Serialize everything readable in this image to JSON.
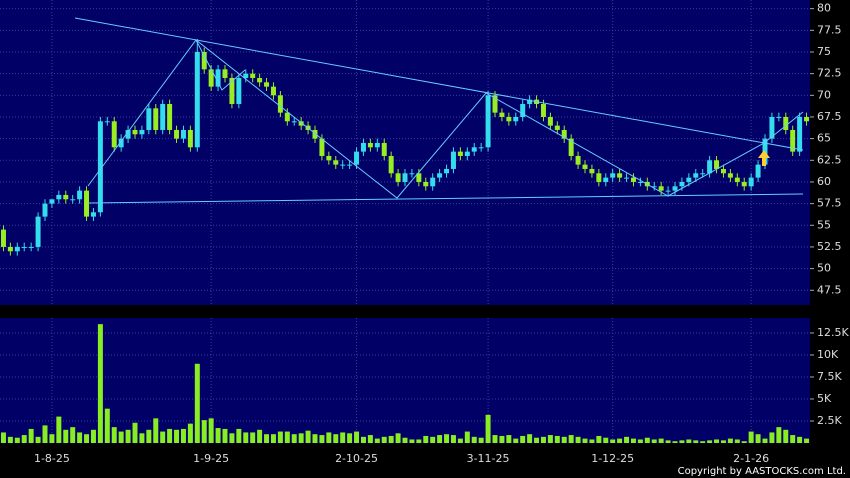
{
  "chart_data": {
    "type": "candlestick",
    "categories": [
      null,
      null,
      null,
      null,
      null,
      null,
      null,
      "1-8-25",
      null,
      null,
      null,
      null,
      null,
      null,
      null,
      null,
      null,
      null,
      null,
      null,
      null,
      null,
      null,
      null,
      null,
      null,
      null,
      null,
      null,
      null,
      "1-9-25",
      null,
      null,
      null,
      null,
      null,
      null,
      null,
      null,
      null,
      null,
      null,
      null,
      null,
      null,
      null,
      null,
      null,
      null,
      null,
      null,
      "2-10-25",
      null,
      null,
      null,
      null,
      null,
      null,
      null,
      null,
      null,
      null,
      null,
      null,
      null,
      null,
      null,
      null,
      null,
      null,
      "3-11-25",
      null,
      null,
      null,
      null,
      null,
      null,
      null,
      null,
      null,
      null,
      null,
      null,
      null,
      null,
      null,
      null,
      null,
      "1-12-25",
      null,
      null,
      null,
      null,
      null,
      null,
      null,
      null,
      null,
      null,
      null,
      null,
      null,
      null,
      null,
      null,
      null,
      null,
      null,
      "2-1-26",
      null,
      null,
      null,
      null,
      null,
      null,
      null,
      null
    ],
    "open": [
      54.5,
      52.5,
      52,
      52.5,
      52.5,
      52.5,
      56,
      57.5,
      58,
      58.5,
      58,
      58,
      59,
      56,
      56.5,
      67,
      67,
      64,
      65,
      66,
      65.5,
      66,
      68.5,
      66,
      69,
      66,
      65,
      66,
      64,
      75,
      73,
      71,
      73,
      72,
      69,
      72,
      72.5,
      72,
      71.5,
      71,
      70,
      68,
      67,
      67,
      66.5,
      66,
      65,
      63,
      62.5,
      62,
      62,
      62,
      63.5,
      64.5,
      64,
      64.5,
      63,
      61,
      60,
      61,
      61,
      60,
      59.5,
      60.5,
      61,
      61.5,
      63.5,
      63,
      63.5,
      64,
      64,
      70,
      68,
      67.5,
      67,
      67.5,
      69,
      69.5,
      69,
      67.5,
      66.5,
      66,
      65,
      63,
      62,
      61.5,
      61,
      60,
      60.5,
      61,
      60.5,
      60.5,
      60,
      60,
      59.5,
      59.5,
      59,
      59,
      59.5,
      60,
      60.5,
      61,
      61,
      62.5,
      61.5,
      61,
      60.5,
      60,
      59.5,
      60.5,
      62,
      65,
      67.5,
      67.5,
      66,
      63.5,
      67.5
    ],
    "high": [
      55,
      53,
      53,
      53,
      53,
      56.5,
      58,
      58,
      59,
      59,
      58.5,
      59.5,
      59.5,
      57,
      67.5,
      67.5,
      67.5,
      65.5,
      66.5,
      66.5,
      66.5,
      69,
      69,
      69.5,
      69.5,
      66.5,
      66.5,
      66.5,
      76.5,
      75.5,
      73.5,
      73.5,
      73.5,
      72.5,
      72.5,
      73,
      73,
      72.5,
      72,
      71.5,
      70.5,
      68.5,
      67.5,
      67.5,
      67,
      66.5,
      65.5,
      63.5,
      63,
      62.5,
      62.5,
      64,
      65,
      65,
      65,
      65,
      63.5,
      61.5,
      61.5,
      61.5,
      61.5,
      60.5,
      61,
      61.5,
      62,
      64,
      64,
      64,
      64.5,
      64.5,
      70.5,
      70.5,
      68.5,
      68,
      68,
      69.5,
      70,
      70,
      69.5,
      68,
      67,
      66.5,
      65.5,
      63.5,
      62.5,
      62,
      61.5,
      61,
      61.5,
      61.5,
      61,
      61,
      60.5,
      60.5,
      60,
      60,
      59.5,
      60,
      60.5,
      61,
      61.5,
      61.5,
      63,
      63,
      62,
      61.5,
      61,
      60.5,
      61,
      62.5,
      65.5,
      68,
      68,
      68,
      66.5,
      68,
      68
    ],
    "low": [
      52,
      51.5,
      51.5,
      52,
      52,
      52,
      55.5,
      57,
      57.5,
      57.5,
      57.5,
      57.5,
      55.5,
      55.5,
      56,
      66.5,
      63.5,
      63.5,
      64.5,
      65,
      65,
      65.5,
      65.5,
      65.5,
      65.5,
      64.5,
      64.5,
      63.5,
      63.5,
      72.5,
      70.5,
      70.5,
      71.5,
      68.5,
      68.5,
      71.5,
      71.5,
      71,
      70.5,
      69.5,
      67.5,
      66.5,
      66.5,
      66,
      65.5,
      64.5,
      62.5,
      62,
      61.5,
      61.5,
      61.5,
      61.5,
      63,
      63.5,
      63.5,
      62.5,
      60.5,
      59.5,
      59.5,
      60.5,
      59.5,
      59,
      59,
      60,
      60.5,
      61,
      62.5,
      62.5,
      63,
      63.5,
      63.5,
      67.5,
      67,
      66.5,
      66.5,
      67,
      68.5,
      68.5,
      67,
      66,
      65.5,
      64.5,
      62.5,
      61.5,
      61,
      60.5,
      59.5,
      59.5,
      60,
      60,
      60,
      59.5,
      59.5,
      59,
      59,
      58.5,
      58.5,
      58.5,
      59,
      59.5,
      60,
      60.5,
      60.5,
      61,
      60.5,
      60,
      59.5,
      59,
      59,
      60,
      61.5,
      64.5,
      67,
      65.5,
      63,
      63,
      66.5
    ],
    "close": [
      52.5,
      52,
      52.5,
      52.5,
      52.5,
      56,
      57.5,
      58,
      58.5,
      58,
      58,
      59,
      56,
      56.5,
      67,
      67,
      64,
      65,
      66,
      65.5,
      66,
      68.5,
      66,
      69,
      66,
      65,
      66,
      64,
      75,
      73,
      71,
      73,
      72,
      69,
      72,
      72.5,
      72,
      71.5,
      71,
      70,
      68,
      67,
      67,
      66.5,
      66,
      65,
      63,
      62.5,
      62,
      62,
      62,
      63.5,
      64.5,
      64,
      64.5,
      63,
      61,
      60,
      61,
      61,
      60,
      59.5,
      60.5,
      61,
      61.5,
      63.5,
      63,
      63.5,
      64,
      64,
      70,
      68,
      67.5,
      67,
      67.5,
      69,
      69.5,
      69,
      67.5,
      66.5,
      66,
      65,
      63,
      62,
      61.5,
      61,
      60,
      60.5,
      61,
      60.5,
      60.5,
      60,
      60,
      59.5,
      59.5,
      59,
      59,
      59.5,
      60,
      60.5,
      61,
      61,
      62.5,
      61.5,
      61,
      60.5,
      60,
      59.5,
      60.5,
      62,
      65,
      67.5,
      67.5,
      66,
      63.5,
      67.5,
      67
    ],
    "volume": [
      1200,
      700,
      600,
      900,
      1600,
      700,
      2000,
      1000,
      3000,
      1500,
      1800,
      1200,
      1000,
      1500,
      13500,
      3900,
      1800,
      1300,
      1500,
      2300,
      1100,
      1500,
      2800,
      1300,
      1600,
      1500,
      1600,
      2200,
      9000,
      2600,
      2800,
      1700,
      1600,
      1100,
      1600,
      1200,
      1200,
      1500,
      1000,
      1000,
      1300,
      1300,
      1000,
      1100,
      1400,
      1000,
      900,
      1200,
      1000,
      1200,
      1100,
      1300,
      700,
      900,
      500,
      700,
      800,
      1100,
      600,
      400,
      400,
      800,
      700,
      900,
      1000,
      900,
      500,
      1300,
      700,
      600,
      3200,
      900,
      800,
      900,
      500,
      800,
      1000,
      600,
      700,
      900,
      800,
      700,
      900,
      700,
      500,
      400,
      800,
      600,
      400,
      500,
      700,
      500,
      400,
      600,
      400,
      500,
      300,
      200,
      300,
      400,
      300,
      200,
      300,
      400,
      300,
      500,
      400,
      200,
      1300,
      1000,
      500,
      1200,
      1800,
      1500,
      900,
      700,
      500
    ],
    "up_color": "#33ddee",
    "down_color": "#99ee22",
    "volume_color": "#88ee22",
    "ylim": [
      45.8,
      81
    ],
    "yticks": [
      47.5,
      50,
      52.5,
      55,
      57.5,
      60,
      62.5,
      65,
      67.5,
      70,
      72.5,
      75,
      77.5,
      80
    ],
    "y2lim": [
      0,
      14200
    ],
    "y2ticks": [
      {
        "value": 2500,
        "label": "2.5K"
      },
      {
        "value": 5000,
        "label": "5K"
      },
      {
        "value": 7500,
        "label": "7.5K"
      },
      {
        "value": 10000,
        "label": "10K"
      },
      {
        "value": 12500,
        "label": "12.5K"
      }
    ],
    "grid": true,
    "copyright": "Copyright by AASTOCKS.com Ltd."
  }
}
